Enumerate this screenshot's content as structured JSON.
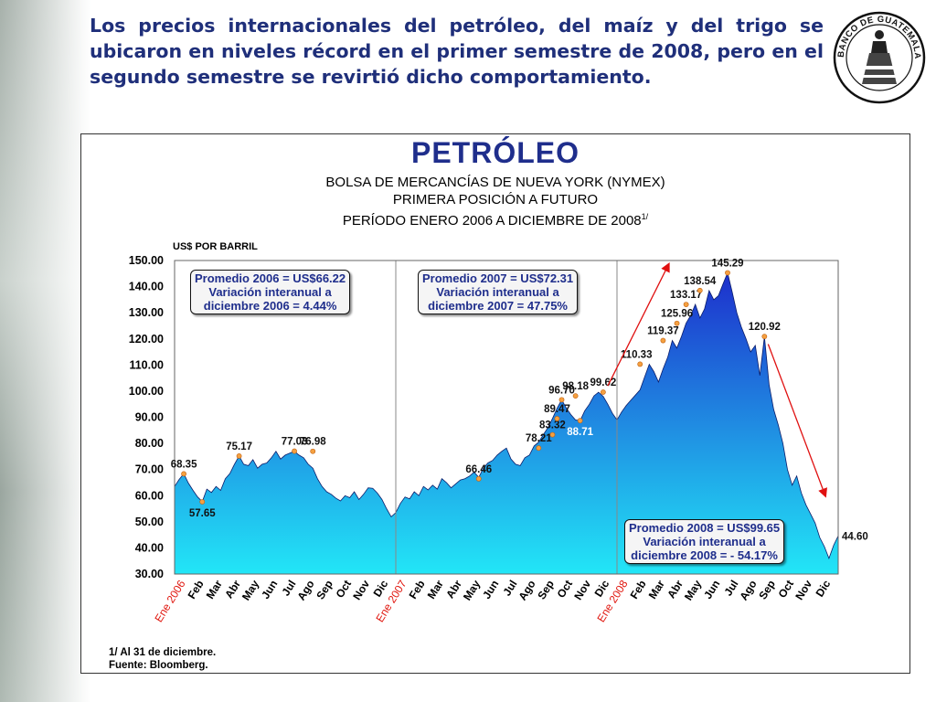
{
  "slide": {
    "headline": "Los precios internacionales del petróleo, del maíz y del trigo se ubicaron en niveles récord en el primer semestre de 2008, pero en el segundo semestre se revirtió dicho comportamiento.",
    "seal_text": "BANCO DE GUATEMALA"
  },
  "chart_data": {
    "type": "area",
    "title": "PETRÓLEO",
    "subtitle_lines": [
      "BOLSA DE MERCANCÍAS DE NUEVA YORK (NYMEX)",
      "PRIMERA POSICIÓN A FUTURO",
      "PERÍODO ENERO 2006 A DICIEMBRE DE 2008"
    ],
    "subtitle_footnote_mark": "1/",
    "ylabel": "US$ POR BARRIL",
    "ylim": [
      30,
      150
    ],
    "yticks": [
      "150.00",
      "140.00",
      "130.00",
      "120.00",
      "110.00",
      "100.00",
      "90.00",
      "80.00",
      "70.00",
      "60.00",
      "50.00",
      "40.00",
      "30.00"
    ],
    "ytick_values": [
      150,
      140,
      130,
      120,
      110,
      100,
      90,
      80,
      70,
      60,
      50,
      40,
      30
    ],
    "xticks": [
      {
        "m": 0,
        "label": "Ene 2006",
        "year": true
      },
      {
        "m": 1,
        "label": "Feb"
      },
      {
        "m": 2,
        "label": "Mar"
      },
      {
        "m": 3,
        "label": "Abr"
      },
      {
        "m": 4,
        "label": "May"
      },
      {
        "m": 5,
        "label": "Jun"
      },
      {
        "m": 6,
        "label": "Jul"
      },
      {
        "m": 7,
        "label": "Ago"
      },
      {
        "m": 8,
        "label": "Sep"
      },
      {
        "m": 9,
        "label": "Oct"
      },
      {
        "m": 10,
        "label": "Nov"
      },
      {
        "m": 11,
        "label": "Dic"
      },
      {
        "m": 12,
        "label": "Ene 2007",
        "year": true
      },
      {
        "m": 13,
        "label": "Feb"
      },
      {
        "m": 14,
        "label": "Mar"
      },
      {
        "m": 15,
        "label": "Abr"
      },
      {
        "m": 16,
        "label": "May"
      },
      {
        "m": 17,
        "label": "Jun"
      },
      {
        "m": 18,
        "label": "Jul"
      },
      {
        "m": 19,
        "label": "Ago"
      },
      {
        "m": 20,
        "label": "Sep"
      },
      {
        "m": 21,
        "label": "Oct"
      },
      {
        "m": 22,
        "label": "Nov"
      },
      {
        "m": 23,
        "label": "Dic"
      },
      {
        "m": 24,
        "label": "Ene 2008",
        "year": true
      },
      {
        "m": 25,
        "label": "Feb"
      },
      {
        "m": 26,
        "label": "Mar"
      },
      {
        "m": 27,
        "label": "Abr"
      },
      {
        "m": 28,
        "label": "May"
      },
      {
        "m": 29,
        "label": "Jun"
      },
      {
        "m": 30,
        "label": "Jul"
      },
      {
        "m": 31,
        "label": "Ago"
      },
      {
        "m": 32,
        "label": "Sep"
      },
      {
        "m": 33,
        "label": "Oct"
      },
      {
        "m": 34,
        "label": "Nov"
      },
      {
        "m": 35,
        "label": "Dic"
      }
    ],
    "series": [
      {
        "x": [
          0,
          0.25,
          0.5,
          0.75,
          1.0,
          1.25,
          1.5,
          1.75,
          2.0,
          2.25,
          2.5,
          2.75,
          3.0,
          3.25,
          3.5,
          3.75,
          4.0,
          4.25,
          4.5,
          4.75,
          5.0,
          5.25,
          5.5,
          5.75,
          6.0,
          6.25,
          6.5,
          6.75,
          7.0,
          7.25,
          7.5,
          7.75,
          8.0,
          8.25,
          8.5,
          8.75,
          9.0,
          9.25,
          9.5,
          9.75,
          10.0,
          10.25,
          10.5,
          10.75,
          11.0,
          11.25,
          11.5,
          11.75,
          12.0,
          12.25,
          12.5,
          12.75,
          13.0,
          13.25,
          13.5,
          13.75,
          14.0,
          14.25,
          14.5,
          14.75,
          15.0,
          15.25,
          15.5,
          15.75,
          16.0,
          16.25,
          16.5,
          16.75,
          17.0,
          17.25,
          17.5,
          17.75,
          18.0,
          18.25,
          18.5,
          18.75,
          19.0,
          19.25,
          19.5,
          19.75,
          20.0,
          20.25,
          20.5,
          20.75,
          21.0,
          21.25,
          21.5,
          21.75,
          22.0,
          22.25,
          22.5,
          22.75,
          23.0,
          23.25,
          23.5,
          23.75,
          24.0,
          24.25,
          24.5,
          24.75,
          25.0,
          25.25,
          25.5,
          25.75,
          26.0,
          26.25,
          26.5,
          26.75,
          27.0,
          27.25,
          27.5,
          27.75,
          28.0,
          28.25,
          28.5,
          28.75,
          29.0,
          29.25,
          29.5,
          29.75,
          30.0,
          30.25,
          30.5,
          30.75,
          31.0,
          31.25,
          31.5,
          31.75,
          32.0,
          32.25,
          32.5,
          32.75,
          33.0,
          33.25,
          33.5,
          33.75,
          34.0,
          34.25,
          34.5,
          34.75,
          35.0,
          35.25,
          35.5,
          35.75,
          36.0
        ],
        "y": [
          63.5,
          66.2,
          68.4,
          64.8,
          62.0,
          59.5,
          57.7,
          62.5,
          61.2,
          63.5,
          62.0,
          66.5,
          68.5,
          72.0,
          75.2,
          72.0,
          71.5,
          73.8,
          70.5,
          72.0,
          72.5,
          74.5,
          77.0,
          74.0,
          75.5,
          76.3,
          77.0,
          75.5,
          74.5,
          72.0,
          70.5,
          66.5,
          63.5,
          61.5,
          60.5,
          59.0,
          58.0,
          60.0,
          59.2,
          61.5,
          58.5,
          60.5,
          63.0,
          62.8,
          61.0,
          58.5,
          55.0,
          51.9,
          53.5,
          57.0,
          59.5,
          58.8,
          61.5,
          60.0,
          63.5,
          62.2,
          64.0,
          62.5,
          66.5,
          65.0,
          63.0,
          64.5,
          66.0,
          66.5,
          67.5,
          69.0,
          67.0,
          70.5,
          72.5,
          73.5,
          75.5,
          77.0,
          78.2,
          74.0,
          72.0,
          71.5,
          74.5,
          75.5,
          79.0,
          80.5,
          83.3,
          86.0,
          89.5,
          93.5,
          96.7,
          93.5,
          91.0,
          89.0,
          88.7,
          92.5,
          95.0,
          98.2,
          99.6,
          98.0,
          95.0,
          91.5,
          89.0,
          92.0,
          94.5,
          96.5,
          98.5,
          100.5,
          105.5,
          110.3,
          107.5,
          103.5,
          108.5,
          113.0,
          119.4,
          116.5,
          121.0,
          126.0,
          129.0,
          133.2,
          128.0,
          131.5,
          138.5,
          135.0,
          136.5,
          141.0,
          145.3,
          138.0,
          130.0,
          124.5,
          120.0,
          115.0,
          117.5,
          106.0,
          120.9,
          102.5,
          93.0,
          87.0,
          80.0,
          70.0,
          64.0,
          67.5,
          61.0,
          56.5,
          53.0,
          49.5,
          44.0,
          40.5,
          36.0,
          41.0,
          44.6
        ]
      }
    ],
    "markers": [
      {
        "m": 0.5,
        "v": 68.35,
        "label": "68.35"
      },
      {
        "m": 1.5,
        "v": 57.65,
        "label": "57.65"
      },
      {
        "m": 3.5,
        "v": 75.17,
        "label": "75.17"
      },
      {
        "m": 6.5,
        "v": 77.03,
        "label": "77.03"
      },
      {
        "m": 7.5,
        "v": 76.98,
        "label": "76.98"
      },
      {
        "m": 16.5,
        "v": 66.46,
        "label": "66.46"
      },
      {
        "m": 19.75,
        "v": 78.21,
        "label": "78.21"
      },
      {
        "m": 20.5,
        "v": 83.32,
        "label": "83.32"
      },
      {
        "m": 20.75,
        "v": 89.47,
        "label": "89.47"
      },
      {
        "m": 21.0,
        "v": 96.7,
        "label": "96.70"
      },
      {
        "m": 21.75,
        "v": 98.18,
        "label": "98.18"
      },
      {
        "m": 22.0,
        "v": 88.71,
        "label": "88.71",
        "white": true
      },
      {
        "m": 23.25,
        "v": 99.62,
        "label": "99.62"
      },
      {
        "m": 25.25,
        "v": 110.33,
        "label": "110.33"
      },
      {
        "m": 26.5,
        "v": 119.37,
        "label": "119.37"
      },
      {
        "m": 27.25,
        "v": 125.96,
        "label": "125.96"
      },
      {
        "m": 27.75,
        "v": 133.17,
        "label": "133.17"
      },
      {
        "m": 28.5,
        "v": 138.54,
        "label": "138.54"
      },
      {
        "m": 30.0,
        "v": 145.29,
        "label": "145.29"
      },
      {
        "m": 32.0,
        "v": 120.92,
        "label": "120.92"
      },
      {
        "m": 36.0,
        "v": 44.6,
        "label": "44.60",
        "nomark": true
      }
    ],
    "annotations": [
      {
        "lines": [
          "Promedio 2006 = US$66.22",
          "Variación interanual a",
          "diciembre 2006 = 4.44%"
        ]
      },
      {
        "lines": [
          "Promedio 2007 = US$72.31",
          "Variación interanual a",
          "diciembre 2007 = 47.75%"
        ]
      },
      {
        "lines": [
          "Promedio 2008 = US$99.65",
          "Variación interanual a",
          "diciembre 2008 = - 54.17%"
        ]
      }
    ],
    "year_dividers": [
      12,
      24
    ],
    "notes": [
      "1/ Al 31 de diciembre.",
      "Fuente: Bloomberg."
    ],
    "colors": {
      "fill_top": "#1d2fcc",
      "fill_bottom": "#22e6f7",
      "title": "#1f2e8c",
      "year_labels": "#e0140c",
      "arrows": "#e01010",
      "markers": "#f5a040",
      "plot_border": "#666666"
    },
    "grid": false
  }
}
